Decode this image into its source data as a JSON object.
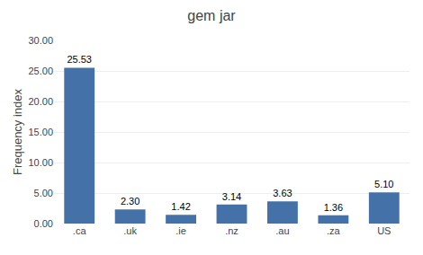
{
  "chart_data": {
    "type": "bar",
    "title": "gem jar",
    "ylabel": "Frequency index",
    "categories": [
      ".ca",
      ".uk",
      ".ie",
      ".nz",
      ".au",
      ".za",
      "US"
    ],
    "values": [
      25.53,
      2.3,
      1.42,
      3.14,
      3.63,
      1.36,
      5.1
    ],
    "value_labels": [
      "25.53",
      "2.30",
      "1.42",
      "3.14",
      "3.63",
      "1.36",
      "5.10"
    ],
    "data_labels": true,
    "color": "#4472a8",
    "ylim": [
      0,
      30
    ],
    "yticks": [
      {
        "value": 0,
        "label": "0.00"
      },
      {
        "value": 5,
        "label": "5.00"
      },
      {
        "value": 10,
        "label": "10.00"
      },
      {
        "value": 15,
        "label": "15.00"
      },
      {
        "value": 20,
        "label": "20.00"
      },
      {
        "value": 25,
        "label": "25.00"
      },
      {
        "value": 30,
        "label": "30.00"
      }
    ],
    "grid": true
  }
}
